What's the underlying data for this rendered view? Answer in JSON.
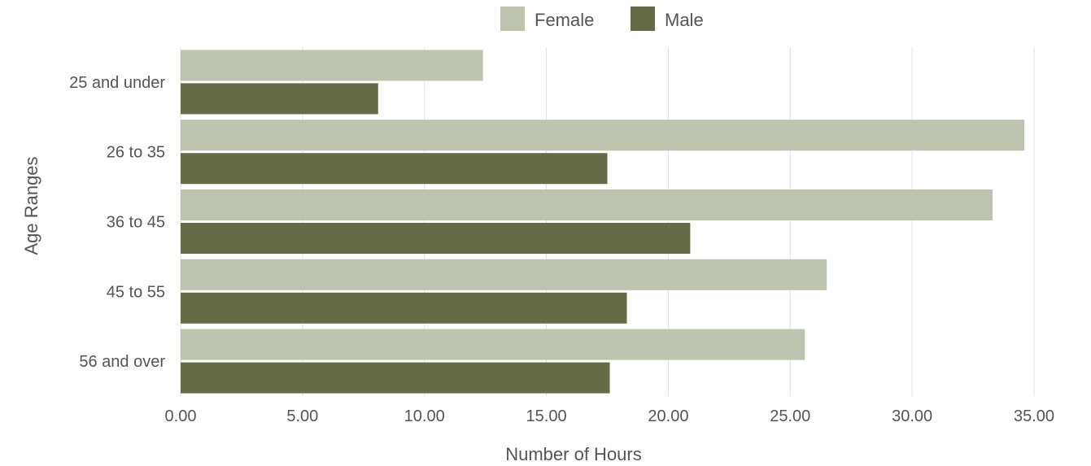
{
  "chart_data": {
    "type": "bar",
    "orientation": "horizontal",
    "categories": [
      "25 and under",
      "26 to 35",
      "36 to 45",
      "45 to 55",
      "56 and over"
    ],
    "series": [
      {
        "name": "Female",
        "color": "#bcc4b0",
        "values": [
          12.4,
          34.6,
          33.3,
          26.5,
          25.6
        ]
      },
      {
        "name": "Male",
        "color": "#656a47",
        "values": [
          8.1,
          17.5,
          20.9,
          18.3,
          17.6
        ]
      }
    ],
    "xlabel": "Number of Hours",
    "ylabel": "Age Ranges",
    "xlim": [
      0,
      35
    ],
    "xticks": [
      0,
      5,
      10,
      15,
      20,
      25,
      30,
      35
    ],
    "xtick_labels": [
      "0.00",
      "5.00",
      "10.00",
      "15.00",
      "20.00",
      "25.00",
      "30.00",
      "35.00"
    ],
    "grid": "vertical",
    "legend_position": "top-center"
  }
}
